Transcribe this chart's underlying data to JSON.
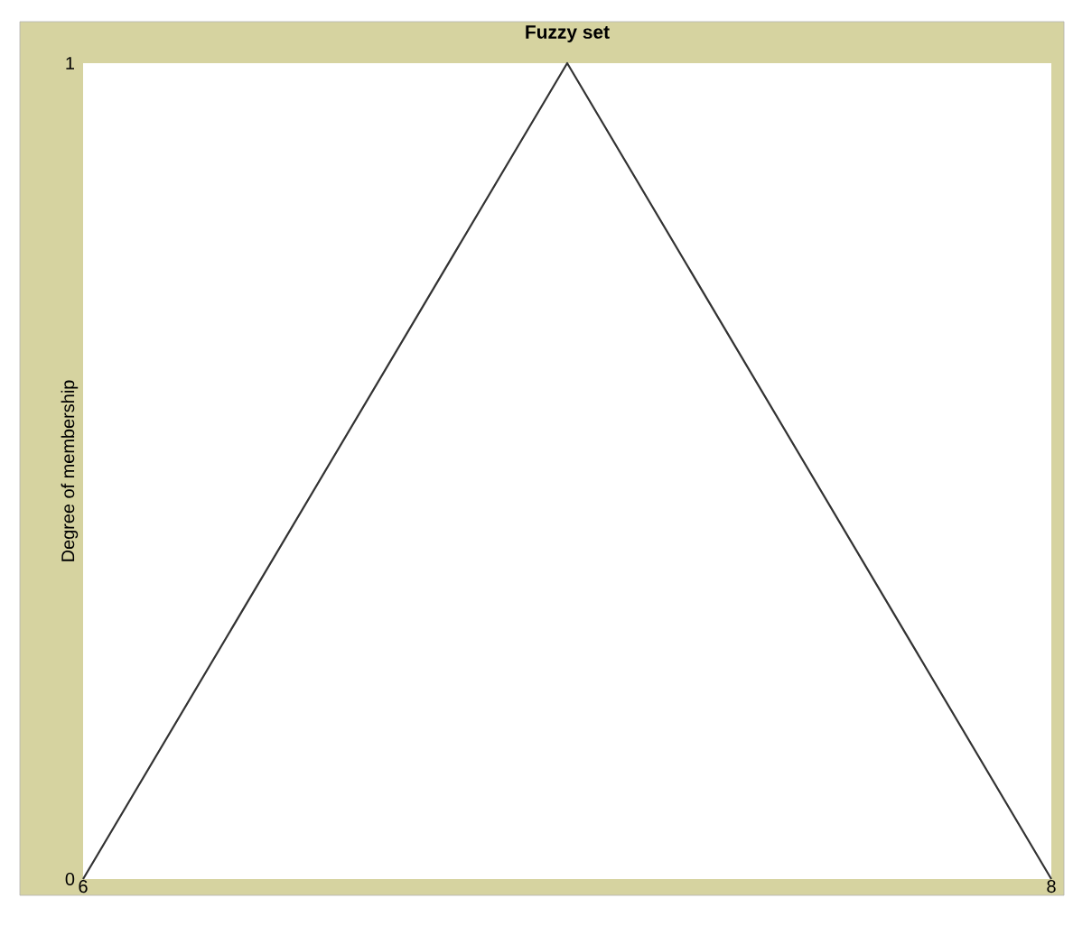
{
  "chart_data": {
    "type": "line",
    "title": "Fuzzy set",
    "ylabel": "Degree of membership",
    "x": [
      6,
      7,
      8
    ],
    "series": [
      {
        "color": "#333333",
        "values": [
          0,
          1,
          0
        ]
      }
    ],
    "xlim": [
      6,
      8
    ],
    "ylim": [
      0,
      1
    ],
    "xticks": [
      6,
      8
    ],
    "yticks": [
      0,
      1
    ],
    "marker": "none"
  }
}
